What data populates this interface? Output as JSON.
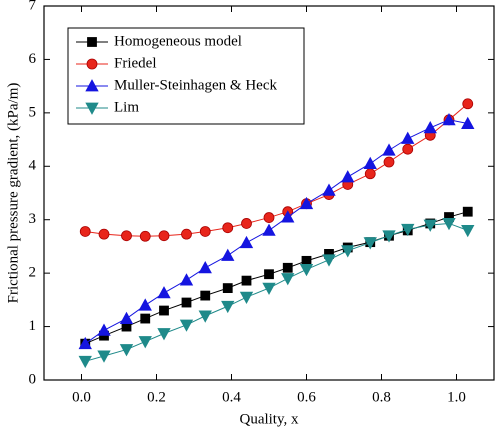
{
  "chart_data": {
    "type": "line",
    "x_label": "Quality, x",
    "y_label": "Frictional pressure gradient, (kPa/m)",
    "x": [
      0.01,
      0.06,
      0.12,
      0.17,
      0.22,
      0.28,
      0.33,
      0.39,
      0.44,
      0.5,
      0.55,
      0.6,
      0.66,
      0.71,
      0.77,
      0.82,
      0.87,
      0.93,
      0.98,
      1.03
    ],
    "series": [
      {
        "name": "Homogeneous model",
        "color": "#000000",
        "marker": "square",
        "values": [
          0.68,
          0.83,
          1.0,
          1.15,
          1.3,
          1.45,
          1.58,
          1.72,
          1.86,
          1.98,
          2.1,
          2.23,
          2.36,
          2.48,
          2.58,
          2.7,
          2.8,
          2.93,
          3.05,
          3.15
        ]
      },
      {
        "name": "Friedel",
        "color": "#e8251b",
        "marker": "circle",
        "values": [
          2.78,
          2.73,
          2.7,
          2.69,
          2.7,
          2.73,
          2.78,
          2.85,
          2.93,
          3.04,
          3.15,
          3.3,
          3.47,
          3.66,
          3.86,
          4.08,
          4.32,
          4.58,
          4.87,
          5.17
        ]
      },
      {
        "name": "Muller-Steinhagen & Heck",
        "color": "#1515e0",
        "marker": "triangle-up",
        "values": [
          0.68,
          0.93,
          1.15,
          1.4,
          1.63,
          1.87,
          2.1,
          2.33,
          2.57,
          2.8,
          3.05,
          3.3,
          3.55,
          3.8,
          4.05,
          4.3,
          4.52,
          4.72,
          4.87,
          4.8
        ]
      },
      {
        "name": "Lim",
        "color": "#1f8a8a",
        "marker": "triangle-down",
        "values": [
          0.35,
          0.45,
          0.57,
          0.72,
          0.87,
          1.03,
          1.2,
          1.38,
          1.55,
          1.72,
          1.9,
          2.07,
          2.25,
          2.42,
          2.57,
          2.7,
          2.82,
          2.9,
          2.93,
          2.8
        ]
      }
    ],
    "xlim": [
      -0.1,
      1.1
    ],
    "xticks": [
      {
        "value": 0,
        "label": "0.0"
      },
      {
        "value": 0.2,
        "label": "0.2"
      },
      {
        "value": 0.4,
        "label": "0.4"
      },
      {
        "value": 0.6,
        "label": "0.6"
      },
      {
        "value": 0.8,
        "label": "0.8"
      },
      {
        "value": 1,
        "label": "1.0"
      }
    ],
    "ylim": [
      0,
      7
    ],
    "yticks": [
      0,
      1,
      2,
      3,
      4,
      5,
      6,
      7
    ],
    "grid": false,
    "legend": "upper-left"
  }
}
